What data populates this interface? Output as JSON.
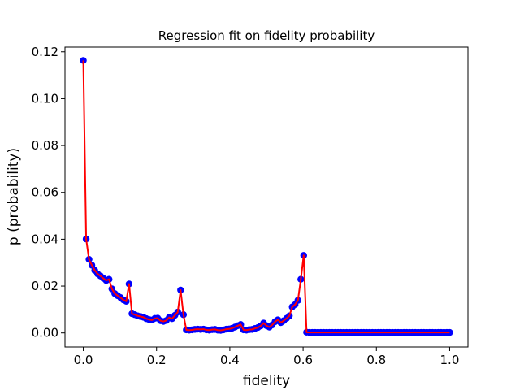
{
  "chart_data": {
    "type": "scatter",
    "title": "Regression fit on fidelity probability",
    "xlabel": "fidelity",
    "ylabel": "p (probability)",
    "xlim": [
      -0.05,
      1.05
    ],
    "ylim": [
      -0.006,
      0.122
    ],
    "xticks": [
      0.0,
      0.2,
      0.4,
      0.6,
      0.8,
      1.0
    ],
    "xtick_labels": [
      "0.0",
      "0.2",
      "0.4",
      "0.6",
      "0.8",
      "1.0"
    ],
    "yticks": [
      0.0,
      0.02,
      0.04,
      0.06,
      0.08,
      0.1,
      0.12
    ],
    "ytick_labels": [
      "0.00",
      "0.02",
      "0.04",
      "0.06",
      "0.08",
      "0.10",
      "0.12"
    ],
    "grid": false,
    "colors": {
      "points": "#0000ff",
      "fit_line": "#ff0000"
    },
    "series": [
      {
        "kind": "points",
        "x": [
          0.0,
          0.0078,
          0.0156,
          0.0234,
          0.0312,
          0.0391,
          0.0469,
          0.0547,
          0.0625,
          0.0703,
          0.0781,
          0.0859,
          0.0938,
          0.1016,
          0.1094,
          0.1172,
          0.125,
          0.1328,
          0.1406,
          0.1484,
          0.1562,
          0.1641,
          0.1719,
          0.1797,
          0.1875,
          0.1953,
          0.2031,
          0.2109,
          0.2188,
          0.2266,
          0.2344,
          0.2422,
          0.25,
          0.2578,
          0.2656,
          0.2734,
          0.2812,
          0.2891,
          0.2969,
          0.3047,
          0.3125,
          0.3203,
          0.3281,
          0.3359,
          0.3438,
          0.3516,
          0.3594,
          0.3672,
          0.375,
          0.3828,
          0.3906,
          0.3984,
          0.4062,
          0.4141,
          0.4219,
          0.4297,
          0.4375,
          0.4453,
          0.4531,
          0.4609,
          0.4688,
          0.4766,
          0.4844,
          0.4922,
          0.5,
          0.5078,
          0.5156,
          0.5234,
          0.5312,
          0.5391,
          0.5469,
          0.5547,
          0.5625,
          0.5703,
          0.5781,
          0.5859,
          0.5938,
          0.6016,
          0.6094,
          0.6172,
          0.625,
          0.6328,
          0.6406,
          0.6484,
          0.6562,
          0.6641,
          0.6719,
          0.6797,
          0.6875,
          0.6953,
          0.7031,
          0.7109,
          0.7188,
          0.7266,
          0.7344,
          0.7422,
          0.75,
          0.7578,
          0.7656,
          0.7734,
          0.7812,
          0.7891,
          0.7969,
          0.8047,
          0.8125,
          0.8203,
          0.8281,
          0.8359,
          0.8438,
          0.8516,
          0.8594,
          0.8672,
          0.875,
          0.8828,
          0.8906,
          0.8984,
          0.9062,
          0.9141,
          0.9219,
          0.9297,
          0.9375,
          0.9453,
          0.9531,
          0.9609,
          0.9688,
          0.9766,
          0.9844,
          0.9922,
          1.0
        ],
        "y": [
          0.1163,
          0.0401,
          0.0314,
          0.0289,
          0.0267,
          0.0252,
          0.0243,
          0.0233,
          0.0224,
          0.0229,
          0.0188,
          0.0168,
          0.0159,
          0.0151,
          0.0141,
          0.0135,
          0.0209,
          0.0082,
          0.0078,
          0.0073,
          0.007,
          0.0067,
          0.0061,
          0.0057,
          0.0055,
          0.0062,
          0.0063,
          0.0052,
          0.0049,
          0.0053,
          0.0066,
          0.0061,
          0.0075,
          0.0089,
          0.0183,
          0.0078,
          0.0013,
          0.0012,
          0.0013,
          0.0015,
          0.0016,
          0.0015,
          0.0016,
          0.0013,
          0.0012,
          0.0014,
          0.0015,
          0.0012,
          0.0011,
          0.0013,
          0.0016,
          0.0017,
          0.002,
          0.0025,
          0.0031,
          0.0036,
          0.0013,
          0.0012,
          0.0014,
          0.0015,
          0.0019,
          0.0023,
          0.003,
          0.0042,
          0.0031,
          0.0025,
          0.0034,
          0.0048,
          0.0056,
          0.0044,
          0.0052,
          0.0062,
          0.0073,
          0.0111,
          0.0121,
          0.0139,
          0.0229,
          0.0331,
          0.0003,
          0.0002,
          0.0002,
          0.0002,
          0.0002,
          0.0002,
          0.0002,
          0.0002,
          0.0002,
          0.0002,
          0.0002,
          0.0002,
          0.0002,
          0.0002,
          0.0002,
          0.0002,
          0.0002,
          0.0002,
          0.0002,
          0.0002,
          0.0002,
          0.0002,
          0.0002,
          0.0002,
          0.0002,
          0.0002,
          0.0002,
          0.0002,
          0.0002,
          0.0002,
          0.0002,
          0.0002,
          0.0002,
          0.0002,
          0.0002,
          0.0002,
          0.0002,
          0.0002,
          0.0002,
          0.0002,
          0.0002,
          0.0002,
          0.0002,
          0.0002,
          0.0002,
          0.0002,
          0.0002,
          0.0002,
          0.0002,
          0.0002,
          0.0002
        ]
      },
      {
        "kind": "line",
        "x": [
          0.0,
          0.0078,
          0.0156,
          0.0234,
          0.0312,
          0.0391,
          0.0469,
          0.0547,
          0.0625,
          0.0703,
          0.0781,
          0.0859,
          0.0938,
          0.1016,
          0.1094,
          0.1172,
          0.125,
          0.1328,
          0.1406,
          0.1484,
          0.1562,
          0.1641,
          0.1719,
          0.1797,
          0.1875,
          0.1953,
          0.2031,
          0.2109,
          0.2188,
          0.2266,
          0.2344,
          0.2422,
          0.25,
          0.2578,
          0.2656,
          0.2734,
          0.2812,
          0.2891,
          0.2969,
          0.3047,
          0.3125,
          0.3203,
          0.3281,
          0.3359,
          0.3438,
          0.3516,
          0.3594,
          0.3672,
          0.375,
          0.3828,
          0.3906,
          0.3984,
          0.4062,
          0.4141,
          0.4219,
          0.4297,
          0.4375,
          0.4453,
          0.4531,
          0.4609,
          0.4688,
          0.4766,
          0.4844,
          0.4922,
          0.5,
          0.5078,
          0.5156,
          0.5234,
          0.5312,
          0.5391,
          0.5469,
          0.5547,
          0.5625,
          0.5703,
          0.5781,
          0.5859,
          0.5938,
          0.6016,
          0.6094,
          0.6172,
          0.625,
          0.6328,
          0.6406,
          0.6484,
          0.6562,
          0.6641,
          0.6719,
          0.6797,
          0.6875,
          0.6953,
          0.7031,
          0.7109,
          0.7188,
          0.7266,
          0.7344,
          0.7422,
          0.75,
          0.7578,
          0.7656,
          0.7734,
          0.7812,
          0.7891,
          0.7969,
          0.8047,
          0.8125,
          0.8203,
          0.8281,
          0.8359,
          0.8438,
          0.8516,
          0.8594,
          0.8672,
          0.875,
          0.8828,
          0.8906,
          0.8984,
          0.9062,
          0.9141,
          0.9219,
          0.9297,
          0.9375,
          0.9453,
          0.9531,
          0.9609,
          0.9688,
          0.9766,
          0.9844,
          0.9922,
          1.0
        ],
        "y": [
          0.1163,
          0.0401,
          0.0314,
          0.0289,
          0.0267,
          0.0252,
          0.0243,
          0.0233,
          0.0224,
          0.0229,
          0.0188,
          0.0168,
          0.0159,
          0.0151,
          0.0141,
          0.0135,
          0.0209,
          0.0082,
          0.0078,
          0.0073,
          0.007,
          0.0067,
          0.0061,
          0.0057,
          0.0055,
          0.0062,
          0.0063,
          0.0052,
          0.0049,
          0.0053,
          0.0066,
          0.0061,
          0.0075,
          0.0089,
          0.0183,
          0.0078,
          0.0013,
          0.0012,
          0.0013,
          0.0015,
          0.0016,
          0.0015,
          0.0016,
          0.0013,
          0.0012,
          0.0014,
          0.0015,
          0.0012,
          0.0011,
          0.0013,
          0.0016,
          0.0017,
          0.002,
          0.0025,
          0.0031,
          0.0036,
          0.0013,
          0.0012,
          0.0014,
          0.0015,
          0.0019,
          0.0023,
          0.003,
          0.0042,
          0.0031,
          0.0025,
          0.0034,
          0.0048,
          0.0056,
          0.0044,
          0.0052,
          0.0062,
          0.0073,
          0.0111,
          0.0121,
          0.0139,
          0.0229,
          0.0331,
          0.0003,
          0.0002,
          0.0002,
          0.0002,
          0.0002,
          0.0002,
          0.0002,
          0.0002,
          0.0002,
          0.0002,
          0.0002,
          0.0002,
          0.0002,
          0.0002,
          0.0002,
          0.0002,
          0.0002,
          0.0002,
          0.0002,
          0.0002,
          0.0002,
          0.0002,
          0.0002,
          0.0002,
          0.0002,
          0.0002,
          0.0002,
          0.0002,
          0.0002,
          0.0002,
          0.0002,
          0.0002,
          0.0002,
          0.0002,
          0.0002,
          0.0002,
          0.0002,
          0.0002,
          0.0002,
          0.0002,
          0.0002,
          0.0002,
          0.0002,
          0.0002,
          0.0002,
          0.0002,
          0.0002,
          0.0002,
          0.0002,
          0.0002,
          0.0002
        ]
      }
    ]
  }
}
